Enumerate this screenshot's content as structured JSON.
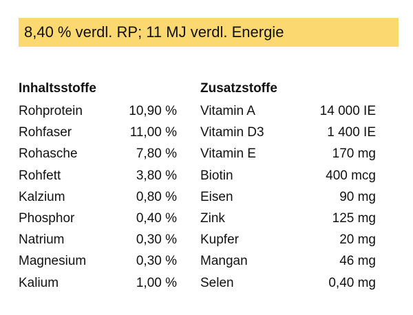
{
  "banner": {
    "text": "8,40 % verdl. RP; 11 MJ verdl. Energie",
    "background": "#fcd870"
  },
  "inhaltsstoffe": {
    "heading": "Inhaltsstoffe",
    "rows": [
      {
        "name": "Rohprotein",
        "value": "10,90 %"
      },
      {
        "name": "Rohfaser",
        "value": "11,00 %"
      },
      {
        "name": "Rohasche",
        "value": "7,80 %"
      },
      {
        "name": "Rohfett",
        "value": "3,80 %"
      },
      {
        "name": "Kalzium",
        "value": "0,80 %"
      },
      {
        "name": "Phosphor",
        "value": "0,40 %"
      },
      {
        "name": "Natrium",
        "value": "0,30 %"
      },
      {
        "name": "Magnesium",
        "value": "0,30 %"
      },
      {
        "name": "Kalium",
        "value": "1,00 %"
      }
    ]
  },
  "zusatzstoffe": {
    "heading": "Zusatzstoffe",
    "rows": [
      {
        "name": "Vitamin A",
        "value": "14 000 IE"
      },
      {
        "name": "Vitamin D3",
        "value": "1 400 IE"
      },
      {
        "name": "Vitamin E",
        "value": "170 mg"
      },
      {
        "name": "Biotin",
        "value": "400 mcg"
      },
      {
        "name": "Eisen",
        "value": "90 mg"
      },
      {
        "name": "Zink",
        "value": "125 mg"
      },
      {
        "name": "Kupfer",
        "value": "20 mg"
      },
      {
        "name": "Mangan",
        "value": "46 mg"
      },
      {
        "name": "Selen",
        "value": "0,40 mg"
      }
    ]
  }
}
